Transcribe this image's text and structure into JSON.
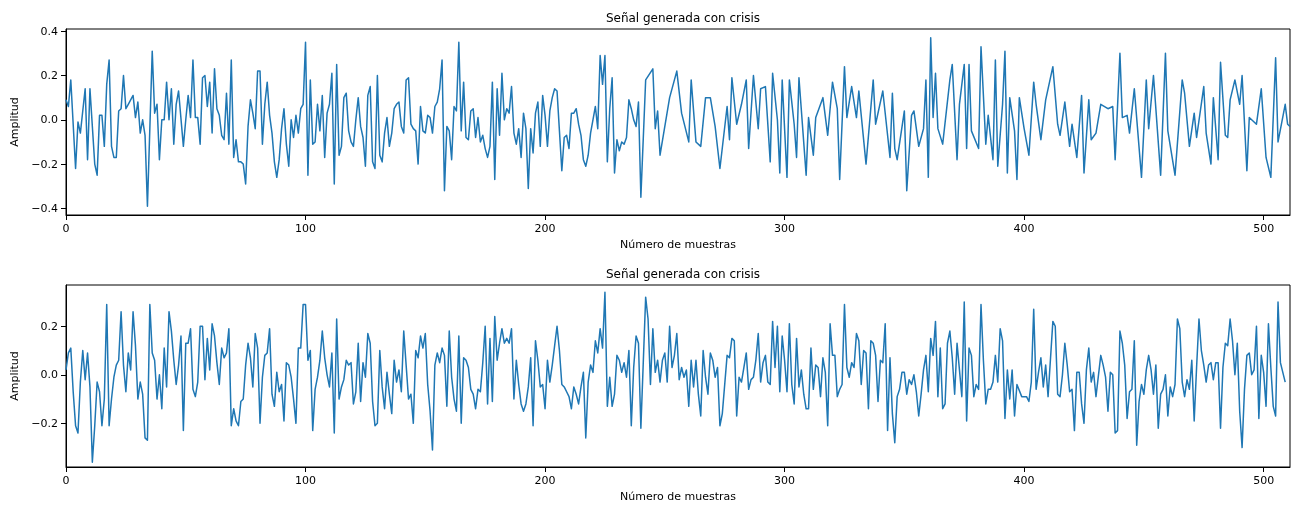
{
  "chart_data": [
    {
      "type": "line",
      "title": "Señal generada con crisis",
      "xlabel": "Número de muestras",
      "ylabel": "Amplitud",
      "color": "#1f77b4",
      "grid": false,
      "xlim": [
        0,
        511
      ],
      "xticks": [
        0,
        100,
        200,
        300,
        400,
        500
      ],
      "ylim": [
        -0.43,
        0.41
      ],
      "yticks": [
        {
          "value": -0.4,
          "label": "−0.4"
        },
        {
          "value": -0.2,
          "label": "−0.2"
        },
        {
          "value": 0,
          "label": "0.0"
        },
        {
          "value": 0.2,
          "label": "0.2"
        },
        {
          "value": 0.4,
          "label": "0.4"
        }
      ],
      "x": [
        0,
        1,
        2,
        4,
        5,
        6,
        8,
        9,
        10,
        12,
        13,
        14,
        15,
        16,
        17,
        18,
        19,
        20,
        21,
        22,
        23,
        24,
        25,
        26,
        28,
        29,
        30,
        31,
        32,
        33,
        34,
        36,
        37,
        38,
        39,
        40,
        41,
        42,
        43,
        44,
        45,
        46,
        47,
        49,
        50,
        51,
        52,
        53,
        54,
        55,
        56,
        57,
        58,
        59,
        60,
        61,
        62,
        63,
        64,
        65,
        66,
        67,
        68,
        69,
        70,
        71,
        72,
        73,
        74,
        75,
        76,
        77,
        78,
        79,
        80,
        81,
        82,
        83,
        84,
        85,
        86,
        87,
        88,
        89,
        90,
        91,
        92,
        93,
        94,
        95,
        96,
        97,
        98,
        99,
        100,
        101,
        102,
        103,
        104,
        105,
        106,
        107,
        108,
        109,
        110,
        111,
        112,
        113,
        114,
        115,
        116,
        117,
        118,
        119,
        120,
        121,
        122,
        123,
        124,
        125,
        126,
        127,
        128,
        129,
        130,
        131,
        132,
        133,
        134,
        135,
        136,
        137,
        138,
        139,
        140,
        141,
        142,
        143,
        144,
        145,
        146,
        147,
        148,
        149,
        150,
        151,
        152,
        153,
        154,
        155,
        156,
        157,
        158,
        159,
        160,
        161,
        162,
        163,
        164,
        165,
        166,
        167,
        168,
        169,
        170,
        171,
        172,
        173,
        174,
        175,
        176,
        177,
        178,
        179,
        180,
        181,
        182,
        183,
        184,
        185,
        186,
        187,
        188,
        189,
        190,
        191,
        192,
        193,
        194,
        195,
        196,
        197,
        198,
        199,
        200,
        201,
        202,
        203,
        204,
        205,
        206,
        207,
        208,
        209,
        210,
        211,
        212,
        213,
        214,
        215,
        216,
        217,
        218,
        219,
        220,
        221,
        222,
        223,
        224,
        225,
        226,
        227,
        228,
        229,
        230,
        231,
        232,
        233,
        234,
        235,
        236,
        237,
        238,
        239,
        240,
        242,
        245,
        246,
        247,
        248,
        252,
        255,
        257,
        260,
        261,
        263,
        265,
        267,
        269,
        271,
        273,
        276,
        277,
        278,
        280,
        282,
        284,
        285,
        287,
        289,
        290,
        292,
        294,
        295,
        297,
        298,
        299,
        301,
        302,
        304,
        305,
        306,
        309,
        310,
        312,
        313,
        316,
        318,
        320,
        322,
        323,
        325,
        326,
        328,
        330,
        331,
        334,
        337,
        338,
        341,
        344,
        345,
        346,
        347,
        350,
        351,
        353,
        354,
        356,
        358,
        359,
        360,
        361,
        362,
        363,
        364,
        366,
        369,
        370,
        372,
        373,
        375,
        376,
        377,
        378,
        381,
        382,
        384,
        385,
        387,
        388,
        389,
        391,
        392,
        393,
        394,
        396,
        397,
        398,
        400,
        402,
        404,
        405,
        407,
        409,
        412,
        414,
        415,
        417,
        419,
        420,
        422,
        424,
        425,
        427,
        428,
        430,
        432,
        435,
        437,
        438,
        440,
        441,
        443,
        444,
        446,
        449,
        451,
        452,
        454,
        457,
        459,
        460,
        463,
        466,
        467,
        469,
        471,
        472,
        475,
        476,
        478,
        479,
        481,
        482,
        484,
        485,
        486,
        488,
        490,
        491,
        493,
        494,
        497,
        499,
        501,
        503,
        505,
        506,
        509,
        510,
        511
      ],
      "values": [
        0.09,
        0.06,
        0.18,
        -0.22,
        -0.01,
        -0.06,
        0.14,
        -0.18,
        0.14,
        -0.2,
        -0.25,
        0.02,
        0.02,
        -0.12,
        0.16,
        0.27,
        -0.12,
        -0.17,
        -0.17,
        0.04,
        0.05,
        0.2,
        0.05,
        0.07,
        0.11,
        0.01,
        0.08,
        -0.06,
        0,
        -0.07,
        -0.39,
        0.31,
        0.03,
        0.07,
        -0.18,
        0,
        0,
        0.17,
        0,
        0.14,
        -0.11,
        0.07,
        0.13,
        -0.12,
        0,
        0.11,
        0.01,
        0.27,
        0.01,
        0.01,
        -0.11,
        0.19,
        0.2,
        0.06,
        0.17,
        -0.06,
        0.23,
        0.05,
        0.02,
        -0.07,
        -0.09,
        0.12,
        -0.11,
        0.27,
        -0.17,
        -0.09,
        -0.19,
        -0.19,
        -0.2,
        -0.29,
        -0.03,
        0.09,
        0.03,
        -0.04,
        0.22,
        0.22,
        -0.11,
        0.07,
        0.17,
        0.02,
        -0.06,
        -0.19,
        -0.26,
        -0.18,
        -0.04,
        0.05,
        -0.11,
        -0.21,
        0,
        -0.08,
        0.02,
        -0.06,
        0.05,
        0.07,
        0.35,
        -0.25,
        0.18,
        -0.11,
        -0.1,
        0.07,
        -0.05,
        0.11,
        -0.17,
        0.03,
        0.07,
        0.21,
        -0.29,
        0.25,
        -0.16,
        -0.12,
        0.1,
        0.12,
        -0.05,
        -0.1,
        -0.12,
        0,
        0.1,
        -0.03,
        -0.08,
        -0.21,
        0.11,
        0.15,
        -0.19,
        -0.22,
        0.2,
        -0.16,
        -0.19,
        -0.06,
        0.01,
        -0.12,
        -0.06,
        0.05,
        0.07,
        0.08,
        -0.03,
        -0.06,
        0.18,
        0.19,
        -0.02,
        -0.04,
        -0.05,
        -0.2,
        0.06,
        -0.05,
        -0.06,
        0.02,
        0.01,
        -0.06,
        0.06,
        0.08,
        0.14,
        0.27,
        -0.32,
        -0.03,
        -0.05,
        -0.18,
        0.06,
        0.04,
        0.35,
        -0.05,
        0.17,
        -0.08,
        -0.09,
        0.04,
        0.05,
        -0.08,
        0.01,
        -0.1,
        -0.07,
        -0.13,
        -0.17,
        -0.12,
        0.17,
        -0.27,
        0.14,
        -0.07,
        0.21,
        0,
        0.05,
        0.03,
        0.15,
        -0.06,
        -0.11,
        -0.04,
        -0.17,
        0.03,
        -0.04,
        -0.31,
        -0.04,
        -0.15,
        0.03,
        0.08,
        -0.12,
        0.11,
        0.02,
        -0.12,
        0.04,
        0.1,
        0.14,
        0.13,
        -0.05,
        -0.23,
        -0.08,
        -0.07,
        -0.13,
        0.03,
        0.03,
        0.05,
        -0.02,
        -0.07,
        -0.18,
        -0.21,
        -0.16,
        -0.06,
        0,
        0.06,
        -0.04,
        0.29,
        0.16,
        0.29,
        -0.19,
        0.05,
        0.19,
        -0.24,
        -0.09,
        -0.14,
        -0.1,
        -0.11,
        -0.08,
        0.09,
        0.05,
        0,
        -0.03,
        0.08,
        -0.35,
        0.18,
        0.23,
        -0.04,
        0.04,
        -0.16,
        0.1,
        0.22,
        0.03,
        -0.1,
        0.18,
        -0.1,
        -0.12,
        0.1,
        0.1,
        -0.03,
        -0.22,
        0.06,
        -0.09,
        0.19,
        -0.02,
        0.07,
        0.18,
        -0.13,
        0.2,
        -0.04,
        0.14,
        0.15,
        -0.19,
        0.21,
        0,
        -0.24,
        0.18,
        -0.26,
        0.18,
        -0.02,
        -0.17,
        0.19,
        -0.25,
        0.01,
        -0.16,
        0.01,
        0.1,
        -0.07,
        0.17,
        0.05,
        -0.27,
        0.24,
        0.01,
        0.15,
        0.01,
        0.13,
        -0.2,
        0.18,
        -0.02,
        0.13,
        -0.17,
        0.12,
        -0.13,
        -0.18,
        0.04,
        -0.32,
        0.02,
        0.04,
        -0.12,
        -0.04,
        0.18,
        -0.26,
        0.37,
        0.01,
        0.21,
        -0.04,
        -0.11,
        0.18,
        0.25,
        -0.18,
        0.07,
        0.25,
        -0.13,
        0.25,
        -0.05,
        -0.13,
        0.33,
        -0.11,
        0.02,
        -0.18,
        0.27,
        -0.21,
        0.07,
        0.31,
        -0.24,
        0.1,
        -0.05,
        -0.27,
        0.1,
        -0.04,
        -0.16,
        0.17,
        0.07,
        -0.09,
        0.09,
        0.24,
        -0.02,
        -0.07,
        0.08,
        -0.12,
        -0.02,
        -0.17,
        0.11,
        -0.24,
        0.09,
        -0.09,
        -0.06,
        0.07,
        0.05,
        0.06,
        -0.18,
        0.3,
        0.01,
        0.02,
        -0.06,
        0.14,
        -0.26,
        0.18,
        -0.04,
        0.2,
        -0.25,
        0.3,
        -0.05,
        -0.25,
        0.18,
        0.12,
        -0.12,
        0.03,
        -0.08,
        0.15,
        -0.06,
        -0.2,
        0.1,
        -0.18,
        0.26,
        -0.07,
        -0.08,
        0.09,
        0.18,
        0.07,
        0.2,
        -0.23,
        0.01,
        -0.02,
        0.14,
        -0.17,
        -0.26,
        0.28,
        -0.1,
        0.07,
        -0.02,
        -0.03
      ]
    },
    {
      "type": "line",
      "title": "Señal generada con crisis",
      "xlabel": "Número de muestras",
      "ylabel": "Amplitud",
      "color": "#1f77b4",
      "grid": false,
      "xlim": [
        0,
        511
      ],
      "xticks": [
        0,
        100,
        200,
        300,
        400,
        500
      ],
      "ylim": [
        -0.38,
        0.37
      ],
      "yticks": [
        {
          "value": -0.2,
          "label": "−0.2"
        },
        {
          "value": 0,
          "label": "0.0"
        },
        {
          "value": 0.2,
          "label": "0.2"
        }
      ],
      "x": [
        0,
        1,
        2,
        3,
        4,
        5,
        6,
        7,
        8,
        9,
        10,
        11,
        12,
        13,
        14,
        15,
        16,
        17,
        18,
        19,
        20,
        21,
        22,
        23,
        24,
        25,
        26,
        27,
        28,
        29,
        30,
        31,
        32,
        33,
        34,
        35,
        36,
        37,
        38,
        39,
        40,
        41,
        42,
        43,
        44,
        45,
        46,
        47,
        48,
        49,
        50,
        51,
        52,
        53,
        54,
        55,
        56,
        57,
        58,
        59,
        60,
        61,
        62,
        63,
        64,
        65,
        66,
        67,
        68,
        69,
        70,
        71,
        72,
        73,
        74,
        75,
        76,
        77,
        78,
        79,
        80,
        81,
        82,
        83,
        84,
        85,
        86,
        87,
        88,
        89,
        90,
        91,
        92,
        93,
        94,
        95,
        96,
        97,
        98,
        99,
        100,
        101,
        102,
        103,
        104,
        105,
        106,
        107,
        108,
        109,
        110,
        111,
        112,
        113,
        114,
        115,
        116,
        117,
        118,
        119,
        120,
        121,
        122,
        123,
        124,
        125,
        126,
        127,
        128,
        129,
        130,
        131,
        132,
        133,
        134,
        135,
        136,
        137,
        138,
        139,
        140,
        141,
        142,
        143,
        144,
        145,
        146,
        147,
        148,
        149,
        150,
        151,
        152,
        153,
        154,
        155,
        156,
        157,
        158,
        159,
        160,
        161,
        162,
        163,
        164,
        165,
        166,
        167,
        168,
        169,
        170,
        171,
        172,
        173,
        174,
        175,
        176,
        177,
        178,
        179,
        180,
        181,
        182,
        183,
        184,
        185,
        186,
        187,
        188,
        189,
        190,
        191,
        192,
        193,
        194,
        195,
        196,
        197,
        198,
        199,
        200,
        201,
        202,
        203,
        204,
        205,
        206,
        207,
        208,
        209,
        210,
        211,
        212,
        213,
        214,
        215,
        216,
        217,
        218,
        219,
        220,
        221,
        222,
        223,
        224,
        225,
        226,
        227,
        228,
        229,
        230,
        231,
        232,
        233,
        234,
        235,
        236,
        237,
        238,
        239,
        240,
        242,
        243,
        244,
        245,
        246,
        247,
        248,
        249,
        250,
        251,
        252,
        253,
        254,
        255,
        256,
        257,
        258,
        259,
        260,
        261,
        262,
        263,
        264,
        265,
        266,
        267,
        268,
        269,
        270,
        271,
        272,
        273,
        274,
        276,
        277,
        278,
        279,
        280,
        281,
        282,
        283,
        284,
        285,
        286,
        287,
        288,
        289,
        290,
        291,
        292,
        293,
        294,
        295,
        296,
        297,
        298,
        299,
        300,
        301,
        302,
        303,
        304,
        305,
        306,
        307,
        308,
        309,
        310,
        311,
        312,
        313,
        314,
        315,
        316,
        317,
        318,
        319,
        320,
        321,
        322,
        323,
        324,
        325,
        326,
        327,
        328,
        329,
        330,
        331,
        332,
        333,
        334,
        335,
        336,
        337,
        338,
        339,
        340,
        341,
        342,
        343,
        344,
        345,
        346,
        347,
        348,
        349,
        350,
        351,
        352,
        353,
        354,
        355,
        356,
        357,
        358,
        359,
        360,
        361,
        362,
        363,
        364,
        365,
        366,
        367,
        368,
        369,
        370,
        371,
        372,
        373,
        374,
        375,
        376,
        377,
        378,
        379,
        380,
        381,
        382,
        383,
        384,
        385,
        386,
        387,
        388,
        389,
        390,
        391,
        392,
        393,
        394,
        395,
        396,
        397,
        399,
        400,
        401,
        402,
        403,
        404,
        405,
        406,
        407,
        408,
        409,
        410,
        412,
        413,
        414,
        415,
        416,
        417,
        418,
        419,
        420,
        421,
        422,
        423,
        424,
        425,
        426,
        427,
        428,
        429,
        430,
        432,
        433,
        434,
        435,
        436,
        437,
        438,
        439,
        440,
        441,
        442,
        443,
        444,
        445,
        446,
        447,
        448,
        449,
        450,
        451,
        452,
        453,
        454,
        455,
        456,
        457,
        458,
        459,
        460,
        461,
        462,
        463,
        464,
        465,
        466,
        467,
        468,
        469,
        470,
        471,
        472,
        473,
        474,
        475,
        476,
        477,
        478,
        479,
        480,
        481,
        482,
        483,
        484,
        485,
        486,
        487,
        488,
        489,
        490,
        491,
        492,
        493,
        494,
        495,
        496,
        497,
        498,
        499,
        500,
        501,
        502,
        503,
        504,
        505,
        506,
        507,
        509
      ],
      "values": [
        0.02,
        0.09,
        0.11,
        -0.07,
        -0.21,
        -0.24,
        -0.03,
        0.1,
        -0.02,
        0.09,
        -0.05,
        -0.36,
        -0.21,
        -0.03,
        -0.07,
        -0.21,
        -0.1,
        0.29,
        -0.21,
        -0.1,
        -0.01,
        0.04,
        0.06,
        0.26,
        0.04,
        -0.07,
        0.09,
        0.02,
        0.26,
        0.12,
        -0.1,
        -0.03,
        -0.08,
        -0.26,
        -0.27,
        0.29,
        0.09,
        0.06,
        -0.1,
        0,
        -0.14,
        0.11,
        -0.05,
        0.26,
        0.18,
        0.06,
        -0.04,
        0.04,
        0.16,
        -0.23,
        0.13,
        0.13,
        0.19,
        -0.06,
        -0.09,
        -0.03,
        0.2,
        0.2,
        -0.02,
        0.15,
        0.02,
        0.21,
        0.16,
        0.05,
        -0.04,
        0.11,
        0.07,
        0.09,
        0.19,
        -0.21,
        -0.14,
        -0.19,
        -0.21,
        -0.11,
        -0.1,
        0.04,
        0.13,
        0.07,
        -0.05,
        0.17,
        0.11,
        -0.2,
        -0.01,
        0.08,
        0.09,
        0.19,
        -0.08,
        -0.13,
        0.01,
        -0.07,
        -0.04,
        -0.19,
        0.05,
        0.04,
        -0.01,
        -0.1,
        -0.2,
        0.11,
        0.11,
        0.29,
        0.29,
        0.06,
        0.1,
        -0.23,
        -0.06,
        -0.01,
        0.06,
        0.18,
        0.07,
        0,
        -0.05,
        0.09,
        -0.24,
        0.23,
        -0.1,
        -0.05,
        -0.02,
        0.06,
        0.04,
        0.05,
        -0.12,
        -0.07,
        0.13,
        -0.11,
        0.05,
        -0.01,
        0.17,
        0.13,
        -0.11,
        -0.21,
        -0.2,
        0.1,
        -0.05,
        -0.14,
        0.01,
        -0.08,
        -0.16,
        0.06,
        -0.03,
        0.02,
        -0.07,
        0.18,
        0.04,
        -0.1,
        -0.08,
        -0.2,
        0.1,
        0.07,
        0.16,
        0.11,
        0.17,
        -0.04,
        -0.15,
        -0.31,
        0.04,
        0.09,
        0.05,
        0.11,
        0.08,
        -0.13,
        0.18,
        -0.01,
        -0.1,
        -0.15,
        0.16,
        -0.2,
        0.07,
        0.06,
        0.03,
        -0.06,
        -0.08,
        -0.14,
        -0.06,
        -0.07,
        0.05,
        0.2,
        -0.12,
        0.15,
        -0.11,
        0.24,
        0.06,
        0.13,
        0.19,
        0.13,
        0.15,
        0.13,
        0.19,
        -0.1,
        0.06,
        -0.04,
        -0.12,
        -0.15,
        -0.12,
        -0.05,
        0.07,
        -0.21,
        0.14,
        0.06,
        -0.05,
        -0.04,
        -0.14,
        0.06,
        -0.03,
        0.04,
        0.12,
        0.2,
        0.1,
        -0.04,
        -0.05,
        -0.07,
        -0.09,
        -0.14,
        -0.05,
        -0.08,
        -0.12,
        -0.05,
        0.01,
        -0.26,
        -0.03,
        0.04,
        0.01,
        0.14,
        0.09,
        0.19,
        0.11,
        0.34,
        -0.13,
        -0.01,
        -0.13,
        -0.08,
        0.08,
        0.06,
        0.01,
        0.05,
        -0.01,
        0.1,
        -0.21,
        0.03,
        0.16,
        0.13,
        -0.22,
        0.32,
        0.23,
        -0.04,
        0.19,
        0.01,
        0.06,
        -0.03,
        0.06,
        0.09,
        -0.03,
        0.2,
        0.03,
        0.08,
        0.17,
        -0.02,
        0.03,
        -0.01,
        0.02,
        -0.13,
        0.06,
        -0.05,
        0.06,
        -0.08,
        -0.17,
        0.1,
        -0.01,
        -0.08,
        0.09,
        0.06,
        -0.01,
        0.03,
        -0.21,
        -0.16,
        0.08,
        0.07,
        0.15,
        0.14,
        -0.17,
        -0.01,
        -0.03,
        0.03,
        0.09,
        -0.06,
        -0.02,
        -0.01,
        0.06,
        0.17,
        -0.03,
        0.05,
        0.08,
        -0.03,
        -0.04,
        0.22,
        0.03,
        0.2,
        -0.07,
        0.16,
        0.06,
        -0.07,
        0.21,
        -0.04,
        -0.12,
        0.15,
        -0.05,
        0.02,
        -0.08,
        -0.14,
        -0.14,
        0.11,
        -0.06,
        0.04,
        0.03,
        -0.09,
        0.07,
        0.01,
        -0.21,
        0.21,
        0.08,
        0.08,
        -0.09,
        -0.06,
        -0.04,
        0.29,
        0.03,
        -0.01,
        0.05,
        0.03,
        0.17,
        0.14,
        -0.04,
        0.1,
        0.09,
        -0.14,
        0.14,
        0.13,
        0.08,
        -0.11,
        0.06,
        0.05,
        0.21,
        -0.23,
        0.07,
        -0.16,
        -0.28,
        -0.09,
        -0.06,
        0.01,
        0.01,
        -0.08,
        -0.02,
        -0.04,
        0,
        -0.07,
        -0.17,
        -0.08,
        0.02,
        0.08,
        -0.07,
        0.15,
        0.08,
        0.22,
        -0.09,
        0.11,
        -0.14,
        -0.12,
        0.13,
        0.18,
        0.07,
        -0.08,
        0.13,
        0.02,
        -0.09,
        0.3,
        -0.19,
        0.11,
        0.08,
        -0.09,
        -0.04,
        -0.06,
        0.29,
        0.06,
        -0.12,
        -0.06,
        -0.06,
        -0.03,
        0.08,
        -0.03,
        0.19,
        0.14,
        -0.18,
        0.02,
        -0.1,
        0.02,
        -0.17,
        -0.04,
        -0.09,
        -0.09,
        -0.09,
        -0.11,
        -0.03,
        0.27,
        -0.06,
        0.01,
        0.07,
        -0.05,
        0.04,
        -0.09,
        0.22,
        0.2,
        -0.08,
        -0.09,
        0,
        0.13,
        0.04,
        -0.07,
        -0.06,
        -0.23,
        0.01,
        0.01,
        -0.12,
        -0.2,
        0.02,
        0.11,
        -0.03,
        0.01,
        -0.09,
        0.08,
        0.04,
        -0.01,
        -0.15,
        0.01,
        0,
        -0.24,
        -0.23,
        0.18,
        0.13,
        0.04,
        -0.18,
        -0.07,
        -0.06,
        0.14,
        -0.29,
        -0.11,
        -0.04,
        -0.08,
        0.02,
        0.08,
        0.02,
        -0.08,
        0.04,
        -0.22,
        -0.08,
        -0.06,
        0,
        -0.17,
        -0.05,
        -0.09,
        -0.04,
        0.23,
        0.19,
        -0.03,
        -0.09,
        -0.02,
        -0.06,
        0.06,
        -0.19,
        0.03,
        0.23,
        0.1,
        0.04,
        -0.03,
        0.04,
        0.05,
        -0.02,
        0.05,
        0.05,
        -0.22,
        0.03,
        0.13,
        0.12,
        0.23,
        0.14,
        0,
        0.13,
        -0.15,
        -0.3,
        -0.06,
        0.08,
        0.09,
        0,
        0.02,
        0.2,
        -0.18,
        0.08,
        0.01,
        -0.13,
        0.21,
        0.03,
        -0.13,
        -0.17,
        0.3,
        0.05,
        -0.03
      ]
    }
  ]
}
